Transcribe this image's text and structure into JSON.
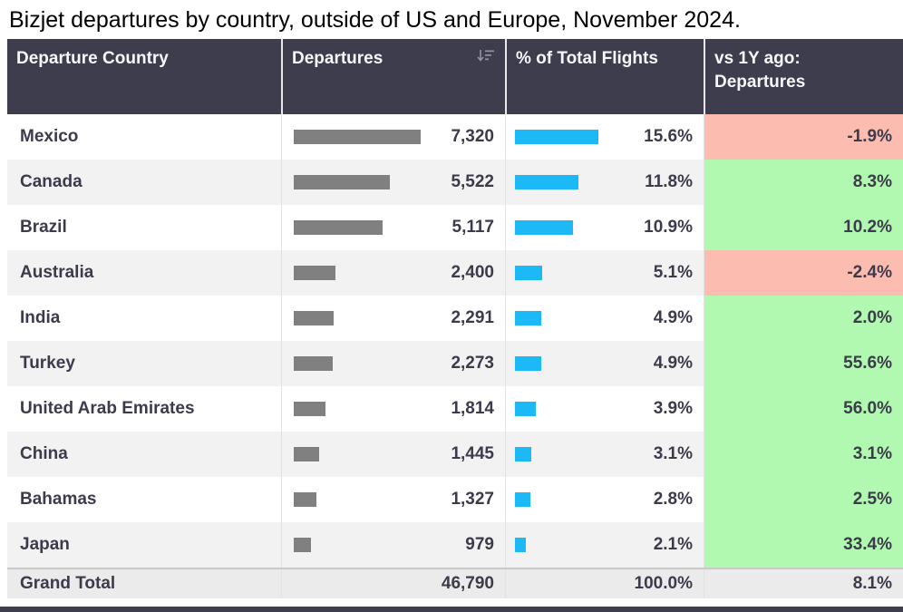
{
  "title": "Bizjet departures by country, outside of US and Europe, November 2024.",
  "colors": {
    "header_bg": "#3e3d4d",
    "header_text": "#f7f7f9",
    "body_text": "#3c3b4b",
    "alt_row_bg": "#f2f2f2",
    "departures_bar": "#808080",
    "pct_bar": "#1cb9f6",
    "negative_cell_bg": "#fcbdb0",
    "positive_cell_bg": "#b1f9b0",
    "grand_total_bg": "#ebebeb"
  },
  "table": {
    "columns": [
      {
        "label": "Departure Country"
      },
      {
        "label": "Departures",
        "icon": "sort-descending-icon"
      },
      {
        "label": "% of Total Flights"
      },
      {
        "label": "vs 1Y ago: Departures"
      }
    ],
    "rows": [
      {
        "country": "Mexico",
        "departures": "7,320",
        "departures_value": 7320,
        "pct": "15.6%",
        "pct_value": 15.6,
        "vs1y": "-1.9%",
        "vs1y_value": -1.9
      },
      {
        "country": "Canada",
        "departures": "5,522",
        "departures_value": 5522,
        "pct": "11.8%",
        "pct_value": 11.8,
        "vs1y": "8.3%",
        "vs1y_value": 8.3
      },
      {
        "country": "Brazil",
        "departures": "5,117",
        "departures_value": 5117,
        "pct": "10.9%",
        "pct_value": 10.9,
        "vs1y": "10.2%",
        "vs1y_value": 10.2
      },
      {
        "country": "Australia",
        "departures": "2,400",
        "departures_value": 2400,
        "pct": "5.1%",
        "pct_value": 5.1,
        "vs1y": "-2.4%",
        "vs1y_value": -2.4
      },
      {
        "country": "India",
        "departures": "2,291",
        "departures_value": 2291,
        "pct": "4.9%",
        "pct_value": 4.9,
        "vs1y": "2.0%",
        "vs1y_value": 2.0
      },
      {
        "country": "Turkey",
        "departures": "2,273",
        "departures_value": 2273,
        "pct": "4.9%",
        "pct_value": 4.9,
        "vs1y": "55.6%",
        "vs1y_value": 55.6
      },
      {
        "country": "United Arab Emirates",
        "departures": "1,814",
        "departures_value": 1814,
        "pct": "3.9%",
        "pct_value": 3.9,
        "vs1y": "56.0%",
        "vs1y_value": 56.0
      },
      {
        "country": "China",
        "departures": "1,445",
        "departures_value": 1445,
        "pct": "3.1%",
        "pct_value": 3.1,
        "vs1y": "3.1%",
        "vs1y_value": 3.1
      },
      {
        "country": "Bahamas",
        "departures": "1,327",
        "departures_value": 1327,
        "pct": "2.8%",
        "pct_value": 2.8,
        "vs1y": "2.5%",
        "vs1y_value": 2.5
      },
      {
        "country": "Japan",
        "departures": "979",
        "departures_value": 979,
        "pct": "2.1%",
        "pct_value": 2.1,
        "vs1y": "33.4%",
        "vs1y_value": 33.4
      }
    ],
    "grand_total": {
      "label": "Grand Total",
      "departures": "46,790",
      "pct": "100.0%",
      "vs1y": "8.1%"
    }
  },
  "chart_data": {
    "type": "table",
    "title": "Bizjet departures by country, outside of US and Europe, November 2024.",
    "columns": [
      "Departure Country",
      "Departures",
      "% of Total Flights",
      "vs 1Y ago: Departures"
    ],
    "categories": [
      "Mexico",
      "Canada",
      "Brazil",
      "Australia",
      "India",
      "Turkey",
      "United Arab Emirates",
      "China",
      "Bahamas",
      "Japan"
    ],
    "series": [
      {
        "name": "Departures",
        "values": [
          7320,
          5522,
          5117,
          2400,
          2291,
          2273,
          1814,
          1445,
          1327,
          979
        ]
      },
      {
        "name": "% of Total Flights",
        "values": [
          15.6,
          11.8,
          10.9,
          5.1,
          4.9,
          4.9,
          3.9,
          3.1,
          2.8,
          2.1
        ]
      },
      {
        "name": "vs 1Y ago: Departures",
        "values": [
          -1.9,
          8.3,
          10.2,
          -2.4,
          2.0,
          55.6,
          56.0,
          3.1,
          2.5,
          33.4
        ]
      }
    ],
    "grand_total": {
      "Departures": 46790,
      "% of Total Flights": 100.0,
      "vs 1Y ago: Departures": 8.1
    },
    "layout_hints": "in-cell gray bars for Departures, blue bars for % of Total, red/green conditional fill for vs 1Y column"
  }
}
